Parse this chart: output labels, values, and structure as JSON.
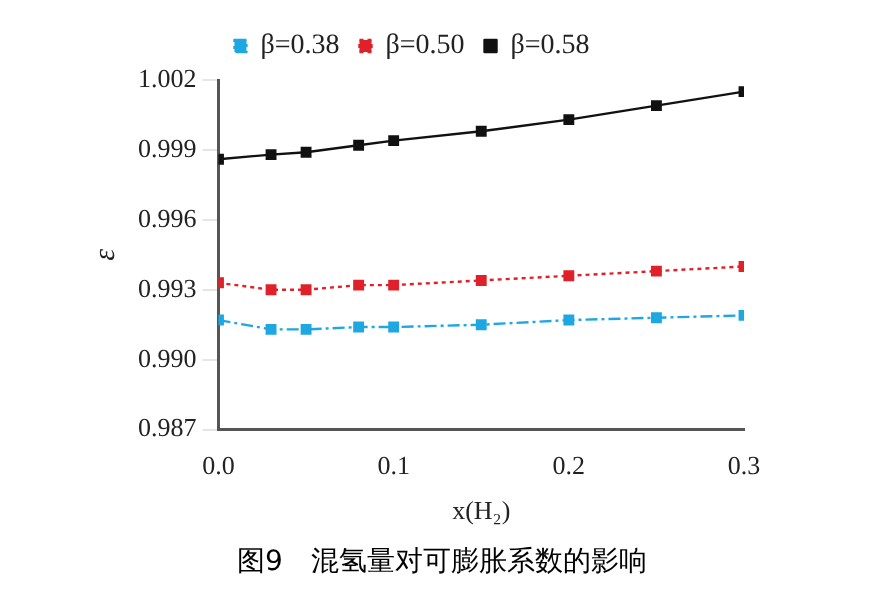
{
  "chart_data": {
    "type": "line",
    "title": "图9　混氢量对可膨胀系数的影响",
    "xlabel": "x(H₂)",
    "ylabel": "ε",
    "x": [
      0,
      0.03,
      0.05,
      0.08,
      0.1,
      0.15,
      0.2,
      0.25,
      0.3
    ],
    "series": [
      {
        "name": "β=0.38",
        "color": "#1ea7e1",
        "line_style": "dashed",
        "values": [
          0.9917,
          0.9913,
          0.9913,
          0.9914,
          0.9914,
          0.9915,
          0.9917,
          0.9918,
          0.9919
        ]
      },
      {
        "name": "β=0.50",
        "color": "#e0202a",
        "line_style": "dotted",
        "values": [
          0.9933,
          0.993,
          0.993,
          0.9932,
          0.9932,
          0.9934,
          0.9936,
          0.9938,
          0.994
        ]
      },
      {
        "name": "β=0.58",
        "color": "#111111",
        "line_style": "solid",
        "values": [
          0.9986,
          0.9988,
          0.9989,
          0.9992,
          0.9994,
          0.9998,
          1.0003,
          1.0009,
          1.0015
        ]
      }
    ],
    "xlim": [
      0,
      0.3
    ],
    "xticks": [
      {
        "value": 0,
        "label": "0.0"
      },
      0.1,
      0.2,
      0.3
    ],
    "ylim": [
      0.987,
      1.002
    ],
    "yticks": [
      0.987,
      {
        "value": 0.99,
        "label": "0.990"
      },
      0.993,
      0.996,
      0.999,
      1.002
    ],
    "grid": false,
    "legend": "top",
    "marker": "square"
  }
}
